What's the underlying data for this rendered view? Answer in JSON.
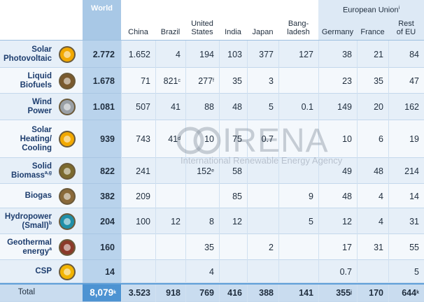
{
  "table": {
    "group_header": "European Union",
    "group_header_sup": "i",
    "columns": [
      [
        "World"
      ],
      [
        "China"
      ],
      [
        "Brazil"
      ],
      [
        "United",
        "States"
      ],
      [
        "India"
      ],
      [
        "Japan"
      ],
      [
        "Bang-",
        "ladesh"
      ],
      [
        "Germany"
      ],
      [
        "France"
      ],
      [
        "Rest",
        "of EU"
      ]
    ],
    "rows": [
      {
        "label": [
          "Solar",
          "Photovoltaic"
        ],
        "cells": [
          "2.772",
          "1.652",
          "4",
          "194",
          "103",
          "377",
          "127",
          "38",
          "21",
          "84"
        ]
      },
      {
        "label": [
          "Liquid",
          "Biofuels"
        ],
        "cells": [
          "1.678",
          "71",
          {
            "text": "821",
            "sup": "c"
          },
          {
            "text": "277",
            "sup": "f"
          },
          "35",
          "3",
          null,
          "23",
          "35",
          "47"
        ]
      },
      {
        "label": [
          "Wind",
          "Power"
        ],
        "cells": [
          "1.081",
          "507",
          "41",
          "88",
          "48",
          "5",
          "0.1",
          "149",
          "20",
          "162"
        ]
      },
      {
        "label": [
          "Solar",
          "Heating/",
          "Cooling"
        ],
        "cells": [
          "939",
          "743",
          {
            "text": "41",
            "sup": "d"
          },
          "10",
          "75",
          "0.7",
          null,
          "10",
          "6",
          "19"
        ]
      },
      {
        "label": [
          "Solid",
          "Biomass"
        ],
        "label_sup": "a,g",
        "cells": [
          "822",
          "241",
          null,
          {
            "text": "152",
            "sup": "e"
          },
          "58",
          null,
          null,
          "49",
          "48",
          "214"
        ]
      },
      {
        "label": [
          "Biogas"
        ],
        "cells": [
          "382",
          "209",
          null,
          null,
          "85",
          null,
          "9",
          "48",
          "4",
          "14"
        ]
      },
      {
        "label": [
          "Hydropower",
          "(Small)"
        ],
        "label_sup": "b",
        "cells": [
          "204",
          "100",
          "12",
          "8",
          "12",
          null,
          "5",
          "12",
          "4",
          "31"
        ]
      },
      {
        "label": [
          "Geothermal",
          "energy"
        ],
        "label_sup": "a",
        "cells": [
          "160",
          null,
          null,
          "35",
          null,
          "2",
          null,
          "17",
          "31",
          "55"
        ]
      },
      {
        "label": [
          "CSP"
        ],
        "cells": [
          "14",
          null,
          null,
          "4",
          null,
          null,
          null,
          "0.7",
          null,
          "5"
        ]
      }
    ],
    "total": {
      "label": "Total",
      "cells": [
        {
          "text": "8,079",
          "sup": "k"
        },
        "3.523",
        "918",
        "769",
        "416",
        "388",
        "141",
        {
          "text": "355",
          "sup": "j"
        },
        "170",
        {
          "text": "644",
          "sup": "k"
        }
      ]
    }
  },
  "watermark": {
    "title": "IRENA",
    "subtitle": "International Renewable Energy Agency"
  }
}
